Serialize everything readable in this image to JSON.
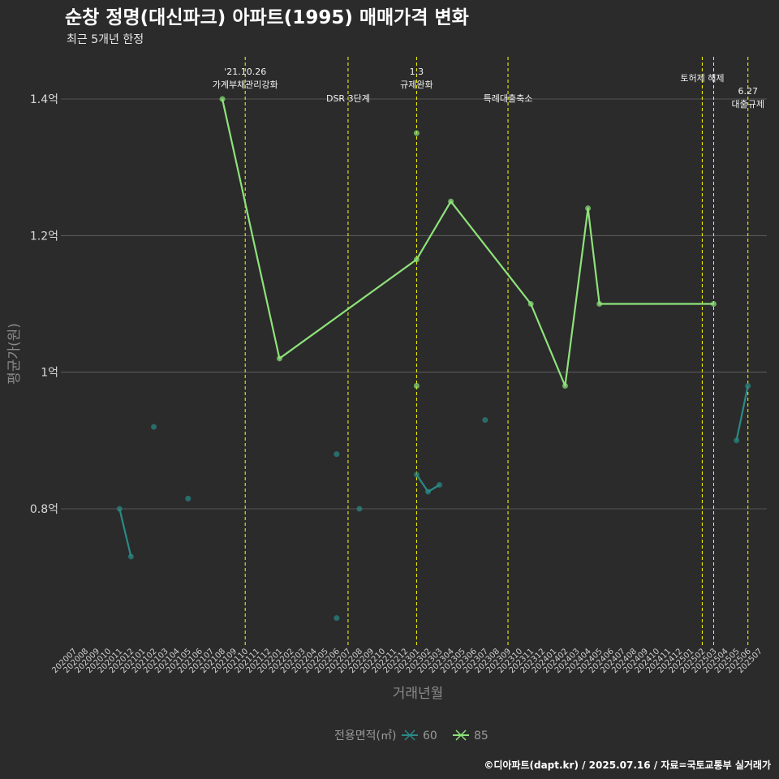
{
  "chart_data": {
    "type": "line",
    "title": "순창 정명(대신파크) 아파트(1995) 매매가격 변화",
    "subtitle": "최근 5개년 한정",
    "xlabel": "거래년월",
    "ylabel": "평균가(원)",
    "caption": "©디아파트(dapt.kr) / 2025.07.16 / 자료=국토교통부 실거래가",
    "legend_title": "전용면적(㎡)",
    "legend_position": "bottom",
    "grid": "horizontal",
    "ylim": [
      0.6,
      1.45
    ],
    "y_ticks": [
      {
        "value": 0.8,
        "label": "0.8억"
      },
      {
        "value": 1.0,
        "label": "1억"
      },
      {
        "value": 1.2,
        "label": "1.2억"
      },
      {
        "value": 1.4,
        "label": "1.4억"
      }
    ],
    "categories": [
      "202007",
      "202008",
      "202009",
      "202010",
      "202011",
      "202012",
      "202101",
      "202102",
      "202103",
      "202104",
      "202105",
      "202106",
      "202107",
      "202108",
      "202109",
      "202110",
      "202111",
      "202112",
      "202201",
      "202202",
      "202203",
      "202204",
      "202205",
      "202206",
      "202207",
      "202208",
      "202209",
      "202210",
      "202211",
      "202212",
      "202301",
      "202302",
      "202303",
      "202304",
      "202305",
      "202306",
      "202307",
      "202308",
      "202309",
      "202310",
      "202311",
      "202312",
      "202401",
      "202402",
      "202403",
      "202404",
      "202405",
      "202406",
      "202407",
      "202408",
      "202409",
      "202410",
      "202411",
      "202412",
      "202501",
      "202502",
      "202503",
      "202504",
      "202505",
      "202506",
      "202507"
    ],
    "series": [
      {
        "name": "60",
        "color": "#2a8a86",
        "segments": [
          [
            {
              "x": "202011",
              "y": 0.8
            },
            {
              "x": "202012",
              "y": 0.73
            }
          ],
          [
            {
              "x": "202102",
              "y": 0.92
            }
          ],
          [
            {
              "x": "202105",
              "y": 0.815
            }
          ],
          [
            {
              "x": "202206",
              "y": 0.88
            }
          ],
          [
            {
              "x": "202206",
              "y": 0.64
            }
          ],
          [
            {
              "x": "202208",
              "y": 0.8
            }
          ],
          [
            {
              "x": "202301",
              "y": 0.85
            },
            {
              "x": "202302",
              "y": 0.825
            },
            {
              "x": "202303",
              "y": 0.835
            }
          ],
          [
            {
              "x": "202307",
              "y": 0.93
            }
          ],
          [
            {
              "x": "202505",
              "y": 0.9
            },
            {
              "x": "202506",
              "y": 0.98
            }
          ]
        ]
      },
      {
        "name": "85",
        "color": "#8ee27a",
        "segments": [
          [
            {
              "x": "202108",
              "y": 1.4
            },
            {
              "x": "202201",
              "y": 1.02
            },
            {
              "x": "202301",
              "y": 1.165
            },
            {
              "x": "202304",
              "y": 1.25
            },
            {
              "x": "202311",
              "y": 1.1
            },
            {
              "x": "202402",
              "y": 0.98
            },
            {
              "x": "202404",
              "y": 1.24
            },
            {
              "x": "202405",
              "y": 1.1
            },
            {
              "x": "202503",
              "y": 1.1
            }
          ]
        ],
        "extra_points": [
          {
            "x": "202301",
            "y": 1.35
          },
          {
            "x": "202301",
            "y": 0.98
          }
        ]
      }
    ],
    "events": [
      {
        "x": "202110",
        "lines": [
          "'21.10.26",
          "가계부채관리강화"
        ],
        "row": 0
      },
      {
        "x": "202207",
        "lines": [
          "DSR 3단계"
        ],
        "row": 1
      },
      {
        "x": "202301",
        "lines": [
          "1.3",
          "규제완화"
        ],
        "row": 0
      },
      {
        "x": "202309",
        "lines": [
          "특례대출축소"
        ],
        "row": 1
      },
      {
        "x": "202502",
        "lines": [
          "토허제 해제"
        ],
        "row": 2
      },
      {
        "x": "202503",
        "lines": [],
        "row": 2
      },
      {
        "x": "202506",
        "lines": [
          "6.27",
          "대출규제"
        ],
        "row": 3
      }
    ],
    "event_line_color": "#ffff00"
  }
}
